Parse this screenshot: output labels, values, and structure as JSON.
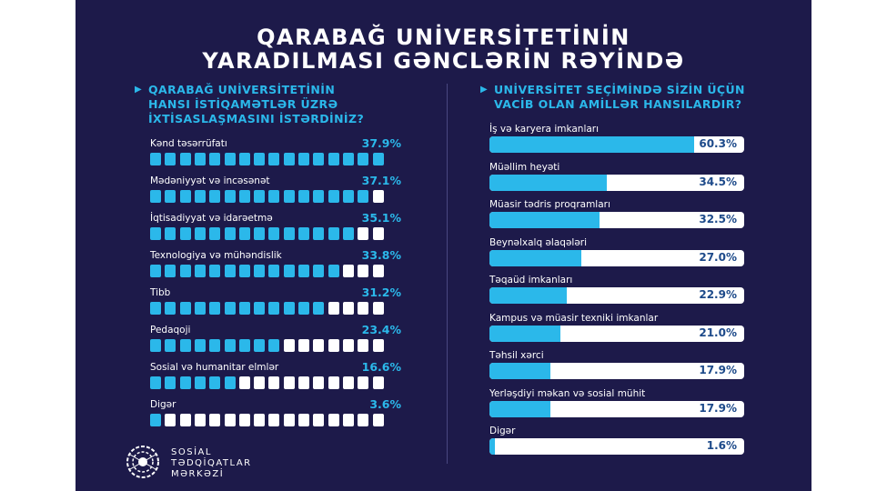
{
  "title": {
    "line1": "QARABAĞ UNİVERSİTETİNİN",
    "line2": "YARADILMASI GƏNCLƏRİN RƏYİNDƏ"
  },
  "colors": {
    "background": "#1d1a4a",
    "accent": "#2bb8ea",
    "empty": "#ffffff"
  },
  "chart_data": [
    {
      "type": "bar",
      "title": "QARABAĞ UNİVERSİTETİNİN HANSI İSTİQAMƏTLƏR ÜZRƏ İXTİSASLAŞMASINI İSTƏRDİNİZ?",
      "title_lines": [
        "QARABAĞ UNİVERSİTETİNİN",
        "HANSI İSTİQAMƏTLƏR ÜZRƏ",
        "İXTİSASLAŞMASINI  İSTƏRDİNİZ?"
      ],
      "categories": [
        "Kənd təsərrüfatı",
        "Mədəniyyət və incəsənət",
        "İqtisadiyyat və idarəetmə",
        "Texnologiya və mühəndislik",
        "Tibb",
        "Pedaqoji",
        "Sosial və humanitar elmlər",
        "Digər"
      ],
      "values": [
        37.9,
        37.1,
        35.1,
        33.8,
        31.2,
        23.4,
        16.6,
        3.6
      ],
      "labels": [
        "37.9%",
        "37.1%",
        "35.1%",
        "33.8%",
        "31.2%",
        "23.4%",
        "16.6%",
        "3.6%"
      ],
      "filled_squares": [
        16,
        15,
        14,
        13,
        12,
        9,
        6,
        1
      ],
      "total_squares": 16
    },
    {
      "type": "bar",
      "title": "UNİVERSİTET SEÇİMİNDƏ SİZİN ÜÇÜN VACİB OLAN AMİLLƏR HANSILARDIR?",
      "title_lines": [
        "UNİVERSİTET SEÇİMİNDƏ SİZİN ÜÇÜN",
        "VACİB OLAN AMİLLƏR HANSILARDIR?"
      ],
      "categories": [
        "İş və karyera imkanları",
        "Müəllim heyəti",
        "Müasir tədris proqramları",
        "Beynəlxalq əlaqələri",
        "Təqaüd imkanları",
        "Kampus və müasir texniki imkanlar",
        "Təhsil xərci",
        "Yerləşdiyi məkan və sosial mühit",
        "Digər"
      ],
      "values": [
        60.3,
        34.5,
        32.5,
        27.0,
        22.9,
        21.0,
        17.9,
        17.9,
        1.6
      ],
      "labels": [
        "60.3%",
        "34.5%",
        "32.5%",
        "27.0%",
        "22.9%",
        "21.0%",
        "17.9%",
        "17.9%",
        "1.6%"
      ],
      "xlim": [
        0,
        75
      ]
    }
  ],
  "logo": {
    "line1": "SOSİAL",
    "line2": "TƏDQİQATLAR",
    "line3": "MƏRKƏZİ"
  }
}
